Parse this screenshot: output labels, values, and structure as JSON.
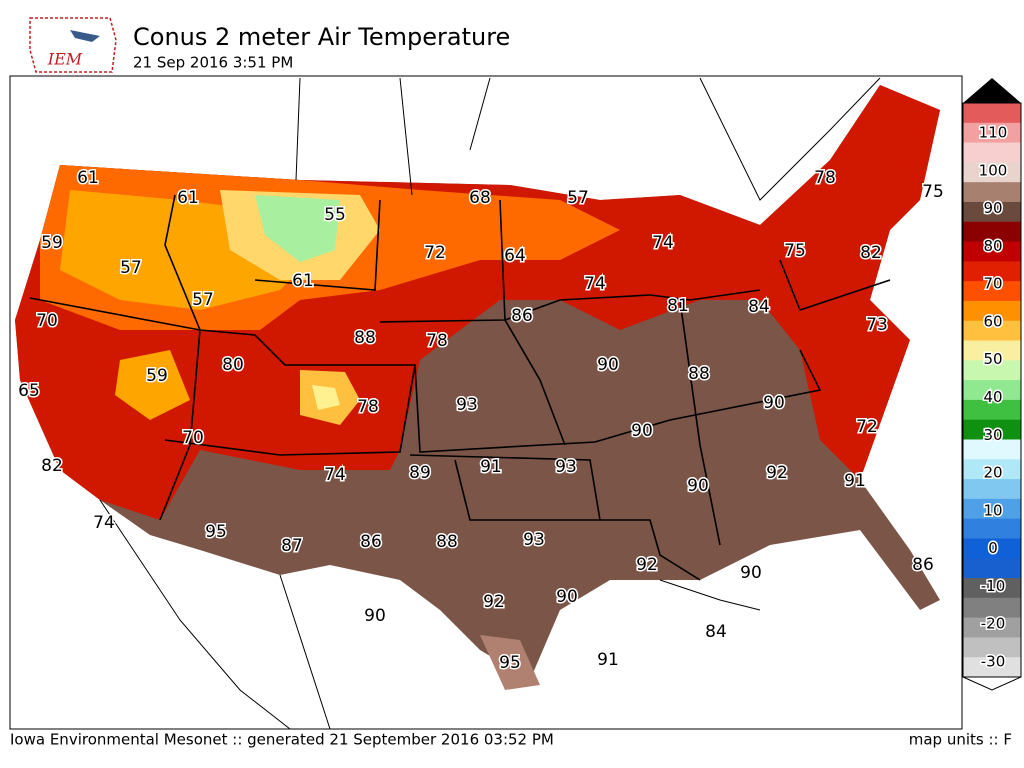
{
  "header": {
    "logo": "IEM",
    "title": "Conus 2 meter Air Temperature",
    "subtitle": "21 Sep 2016 3:51 PM"
  },
  "colorbar": {
    "ticks": [
      110,
      100,
      90,
      80,
      70,
      60,
      50,
      40,
      30,
      20,
      10,
      0,
      -10,
      -20,
      -30
    ]
  },
  "stations": [
    61,
    61,
    55,
    68,
    57,
    59,
    57,
    72,
    64,
    74,
    78,
    75,
    75,
    82,
    61,
    57,
    74,
    81,
    84,
    70,
    88,
    78,
    86,
    73,
    80,
    59,
    90,
    88,
    65,
    78,
    93,
    90,
    70,
    90,
    72,
    82,
    89,
    91,
    93,
    92,
    74,
    90,
    91,
    74,
    95,
    87,
    86,
    88,
    93,
    92,
    90,
    86,
    90,
    92,
    90,
    84,
    95,
    91
  ],
  "footer": {
    "left": "Iowa Environmental Mesonet :: generated 21 September 2016 03:52 PM",
    "right": "map units :: F"
  }
}
